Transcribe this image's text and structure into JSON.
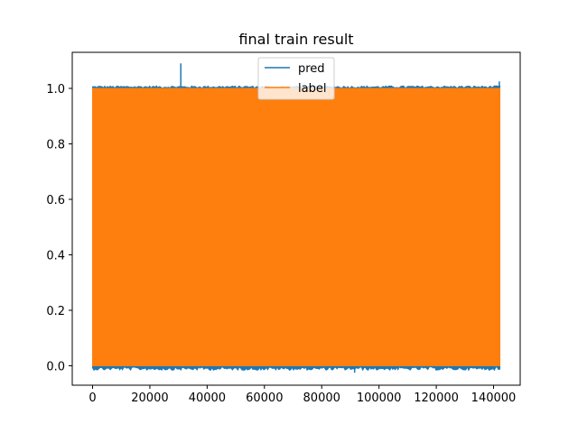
{
  "chart_data": {
    "type": "line",
    "title": "final train result",
    "xlabel": "",
    "ylabel": "",
    "xlim": [
      -7100,
      149300
    ],
    "ylim": [
      -0.07,
      1.13
    ],
    "x_ticks": [
      0,
      20000,
      40000,
      60000,
      80000,
      100000,
      120000,
      140000
    ],
    "y_ticks": [
      0.0,
      0.2,
      0.4,
      0.6,
      0.8,
      1.0
    ],
    "x_tick_labels": [
      "0",
      "20000",
      "40000",
      "60000",
      "80000",
      "100000",
      "120000",
      "140000"
    ],
    "y_tick_labels": [
      "0.0",
      "0.2",
      "0.4",
      "0.6",
      "0.8",
      "1.0"
    ],
    "grid": false,
    "legend_position": "top-center",
    "series": [
      {
        "name": "pred",
        "color": "#1f77b4",
        "x_range": [
          0,
          142200
        ],
        "baseline": 0.0,
        "top": 1.005,
        "spikes": [
          {
            "x": 30800,
            "y": 1.09
          },
          {
            "x": 91500,
            "y": -0.025
          },
          {
            "x": 142000,
            "y": 1.025
          }
        ]
      },
      {
        "name": "label",
        "color": "#ff7f0e",
        "x_range": [
          0,
          142200
        ],
        "baseline": 0.0,
        "top": 1.0
      }
    ]
  }
}
